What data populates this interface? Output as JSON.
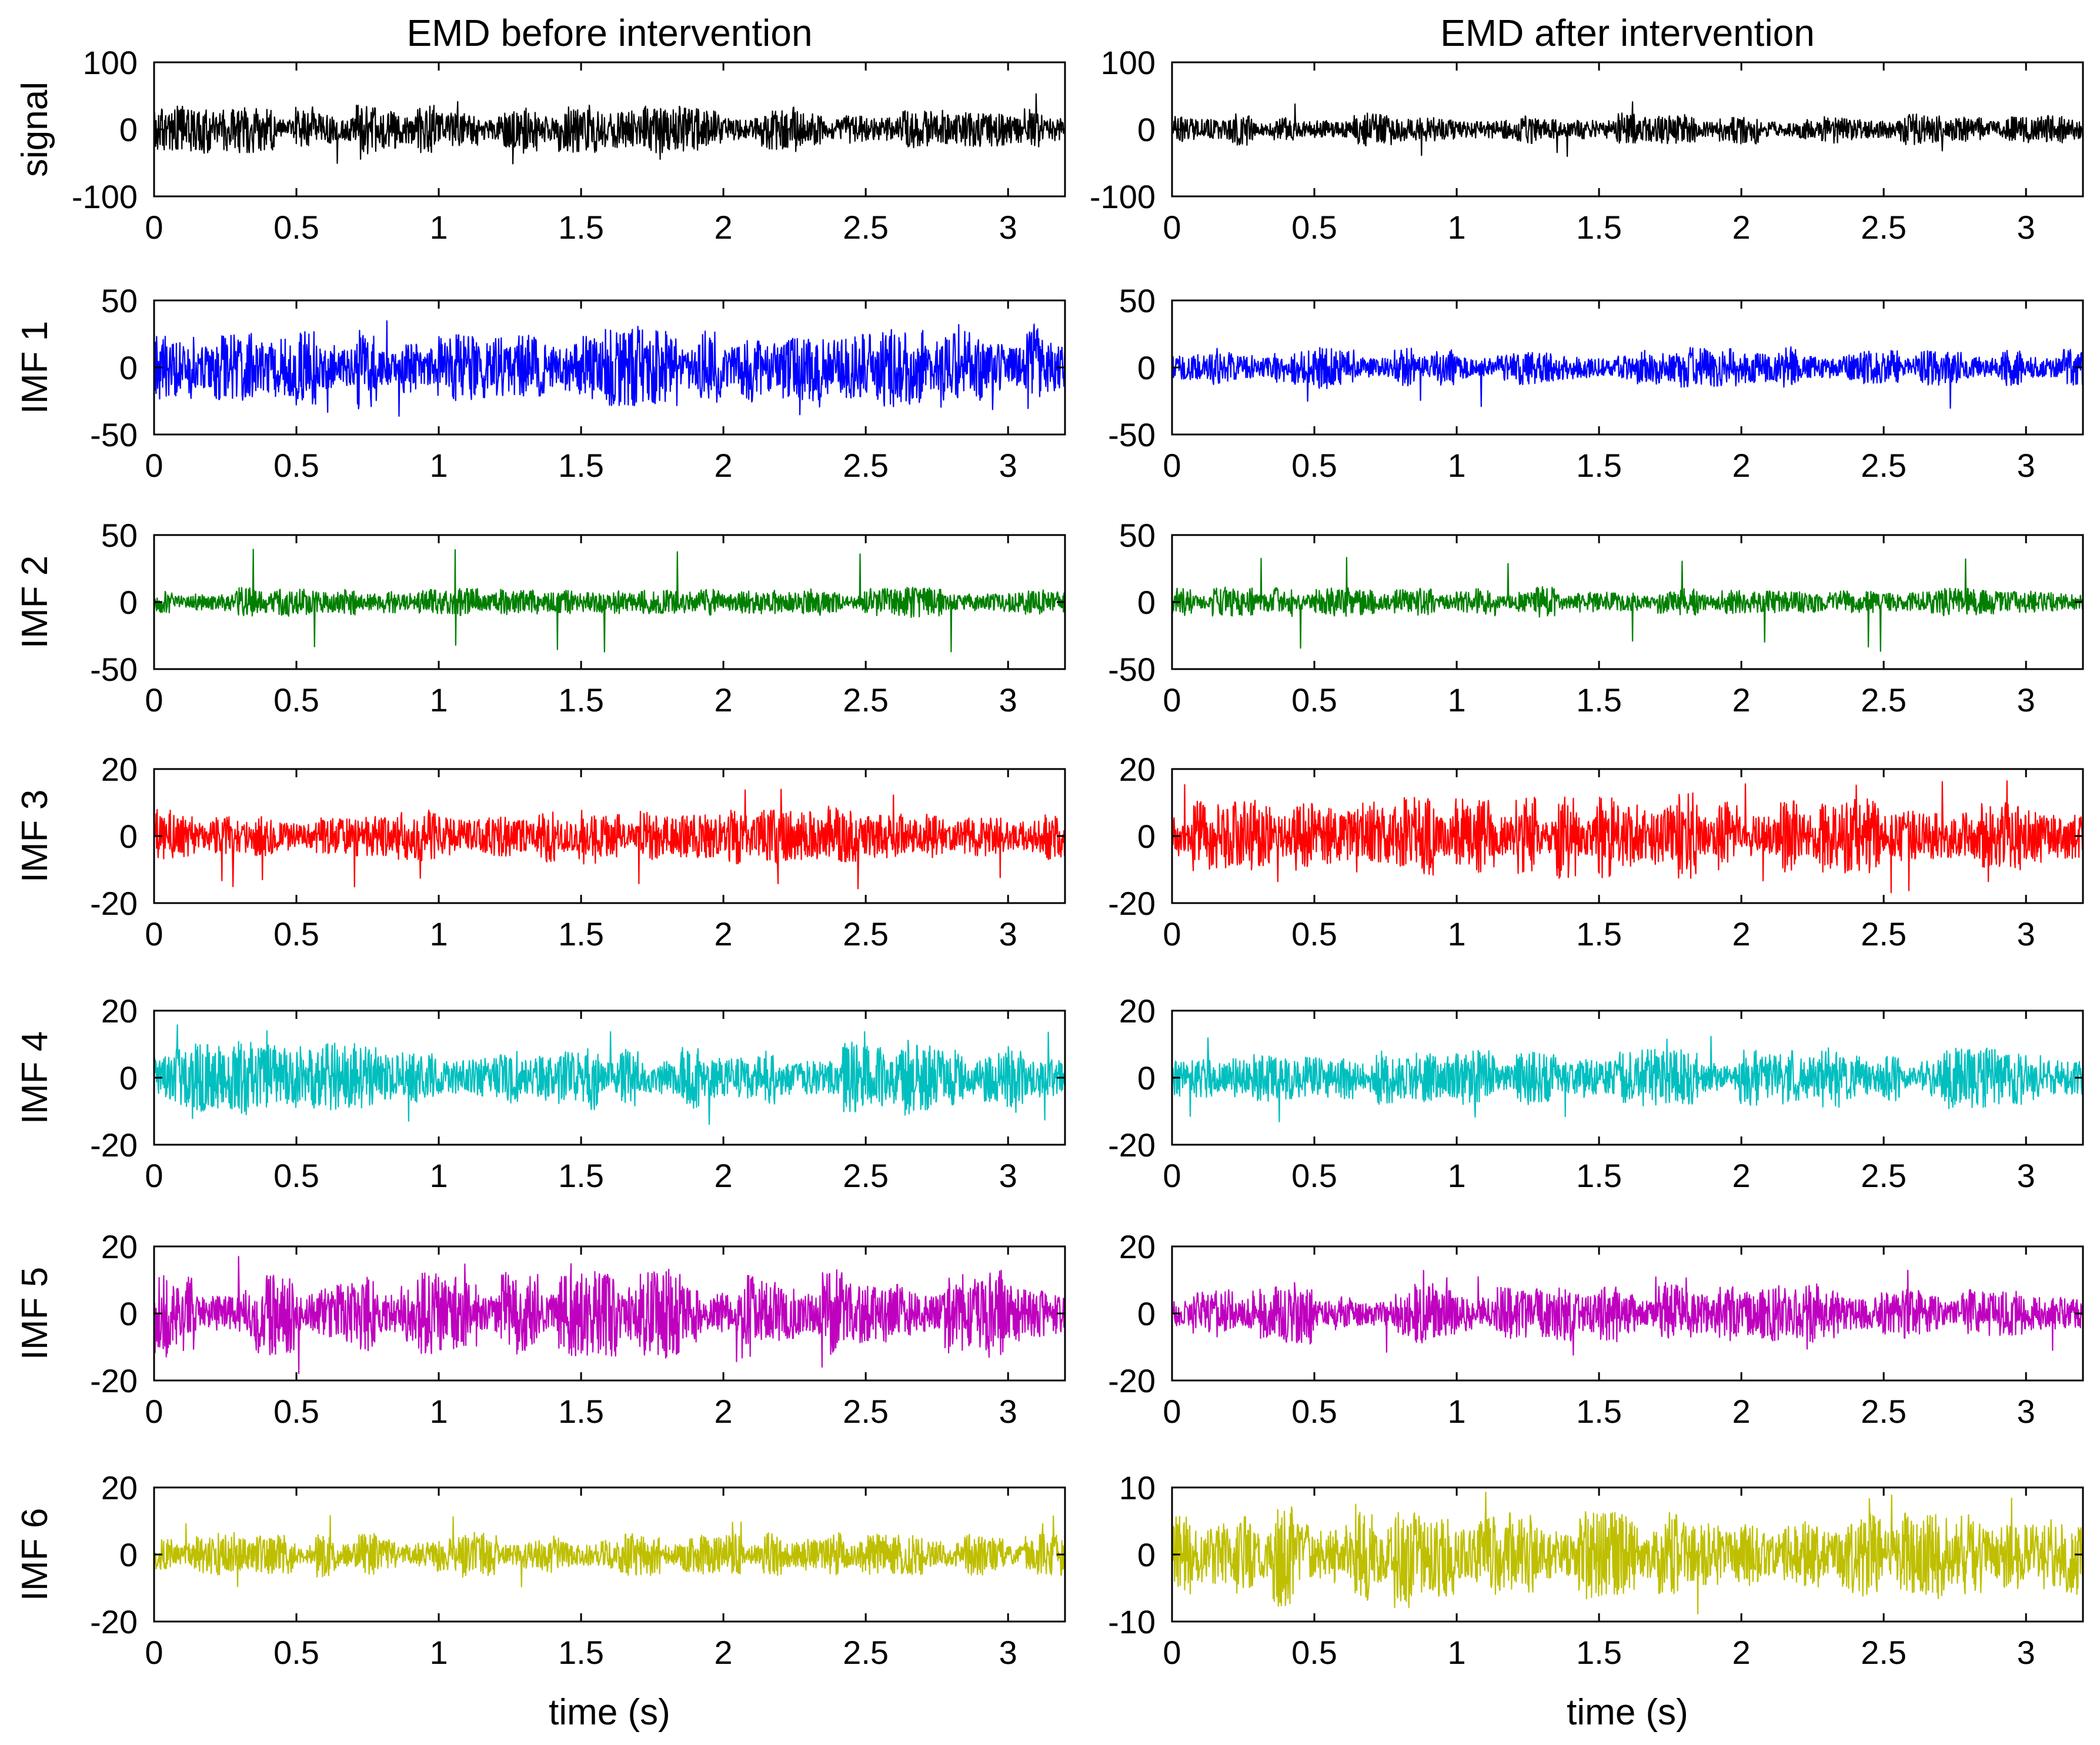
{
  "chart_data": {
    "type": "line",
    "columns": [
      {
        "title": "EMD before intervention",
        "xlabel": "time (s)"
      },
      {
        "title": "EMD after intervention",
        "xlabel": "time (s)"
      }
    ],
    "rows": [
      {
        "label": "signal",
        "color": "#000000",
        "ylim": [
          [
            -100,
            100
          ],
          [
            -100,
            100
          ]
        ],
        "yticks": [
          [
            -100,
            0,
            100
          ],
          [
            -100,
            0,
            100
          ]
        ],
        "ytick_labels": [
          [
            "-100",
            "0",
            "100"
          ],
          [
            "-100",
            "0",
            "100"
          ]
        ],
        "typical_amplitude": [
          16,
          11
        ],
        "peak_amplitude": [
          55,
          42
        ]
      },
      {
        "label": "IMF 1",
        "color": "#0000ff",
        "ylim": [
          [
            -50,
            50
          ],
          [
            -50,
            50
          ]
        ],
        "yticks": [
          [
            -50,
            0,
            50
          ],
          [
            -50,
            0,
            50
          ]
        ],
        "ytick_labels": [
          [
            "-50",
            "0",
            "50"
          ],
          [
            "-50",
            "0",
            "50"
          ]
        ],
        "typical_amplitude": [
          14,
          7
        ],
        "peak_amplitude": [
          38,
          32
        ]
      },
      {
        "label": "IMF 2",
        "color": "#007f00",
        "ylim": [
          [
            -50,
            50
          ],
          [
            -50,
            50
          ]
        ],
        "yticks": [
          [
            -50,
            0,
            50
          ],
          [
            -50,
            0,
            50
          ]
        ],
        "ytick_labels": [
          [
            "-50",
            "0",
            "50"
          ],
          [
            "-50",
            "0",
            "50"
          ]
        ],
        "typical_amplitude": [
          5,
          5
        ],
        "peak_amplitude": [
          42,
          38
        ]
      },
      {
        "label": "IMF 3",
        "color": "#ff0000",
        "ylim": [
          [
            -20,
            20
          ],
          [
            -20,
            20
          ]
        ],
        "yticks": [
          [
            -20,
            0,
            20
          ],
          [
            -20,
            0,
            20
          ]
        ],
        "ytick_labels": [
          [
            "-20",
            "0",
            "20"
          ],
          [
            "-20",
            "0",
            "20"
          ]
        ],
        "typical_amplitude": [
          4,
          6
        ],
        "peak_amplitude": [
          16,
          17
        ]
      },
      {
        "label": "IMF 4",
        "color": "#00bfbf",
        "ylim": [
          [
            -20,
            20
          ],
          [
            -20,
            20
          ]
        ],
        "yticks": [
          [
            -20,
            0,
            20
          ],
          [
            -20,
            0,
            20
          ]
        ],
        "ytick_labels": [
          [
            "-20",
            "0",
            "20"
          ],
          [
            "-20",
            "0",
            "20"
          ]
        ],
        "typical_amplitude": [
          5,
          4
        ],
        "peak_amplitude": [
          16,
          14
        ]
      },
      {
        "label": "IMF 5",
        "color": "#bf00bf",
        "ylim": [
          [
            -20,
            20
          ],
          [
            -20,
            20
          ]
        ],
        "yticks": [
          [
            -20,
            0,
            20
          ],
          [
            -20,
            0,
            20
          ]
        ],
        "ytick_labels": [
          [
            "-20",
            "0",
            "20"
          ],
          [
            "-20",
            "0",
            "20"
          ]
        ],
        "typical_amplitude": [
          6,
          4
        ],
        "peak_amplitude": [
          18,
          13
        ]
      },
      {
        "label": "IMF 6",
        "color": "#bfbf00",
        "ylim": [
          [
            -20,
            20
          ],
          [
            -10,
            10
          ]
        ],
        "yticks": [
          [
            -20,
            0,
            20
          ],
          [
            -10,
            0,
            10
          ]
        ],
        "ytick_labels": [
          [
            "-20",
            "0",
            "20"
          ],
          [
            "-10",
            "0",
            "10"
          ]
        ],
        "typical_amplitude": [
          3,
          3.5
        ],
        "peak_amplitude": [
          12,
          9.5
        ]
      }
    ],
    "xlim": [
      0,
      3.2
    ],
    "xticks": [
      0,
      0.5,
      1,
      1.5,
      2,
      2.5,
      3
    ],
    "xtick_labels": [
      "0",
      "0.5",
      "1",
      "1.5",
      "2",
      "2.5",
      "3"
    ],
    "grid": false
  }
}
